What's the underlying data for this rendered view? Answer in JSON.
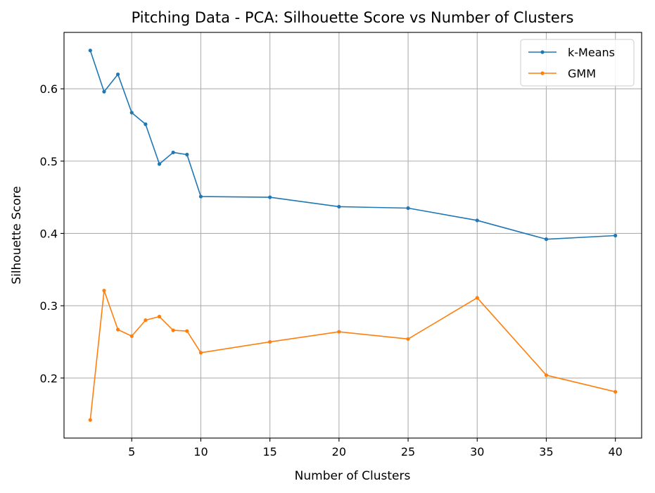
{
  "chart_data": {
    "type": "line",
    "title": "Pitching Data - PCA: Silhouette Score vs Number of Clusters",
    "xlabel": "Number of Clusters",
    "ylabel": "Silhouette Score",
    "x": [
      2,
      3,
      4,
      5,
      6,
      7,
      8,
      9,
      10,
      15,
      20,
      25,
      30,
      35,
      40
    ],
    "xlim": [
      0.1,
      41.9
    ],
    "ylim": [
      0.117,
      0.678
    ],
    "xticks": [
      5,
      10,
      15,
      20,
      25,
      30,
      35,
      40
    ],
    "yticks": [
      0.2,
      0.3,
      0.4,
      0.5,
      0.6
    ],
    "xtick_labels": [
      "5",
      "10",
      "15",
      "20",
      "25",
      "30",
      "35",
      "40"
    ],
    "ytick_labels": [
      "0.2",
      "0.3",
      "0.4",
      "0.5",
      "0.6"
    ],
    "grid": true,
    "legend_position": "top-right",
    "series": [
      {
        "name": "k-Means",
        "color": "#1f77b4",
        "values": [
          0.653,
          0.596,
          0.62,
          0.567,
          0.551,
          0.496,
          0.512,
          0.509,
          0.451,
          0.45,
          0.437,
          0.435,
          0.418,
          0.392,
          0.397
        ]
      },
      {
        "name": "GMM",
        "color": "#ff7f0e",
        "values": [
          0.142,
          0.321,
          0.267,
          0.258,
          0.28,
          0.285,
          0.266,
          0.265,
          0.235,
          0.25,
          0.264,
          0.254,
          0.311,
          0.204,
          0.181
        ]
      }
    ]
  }
}
